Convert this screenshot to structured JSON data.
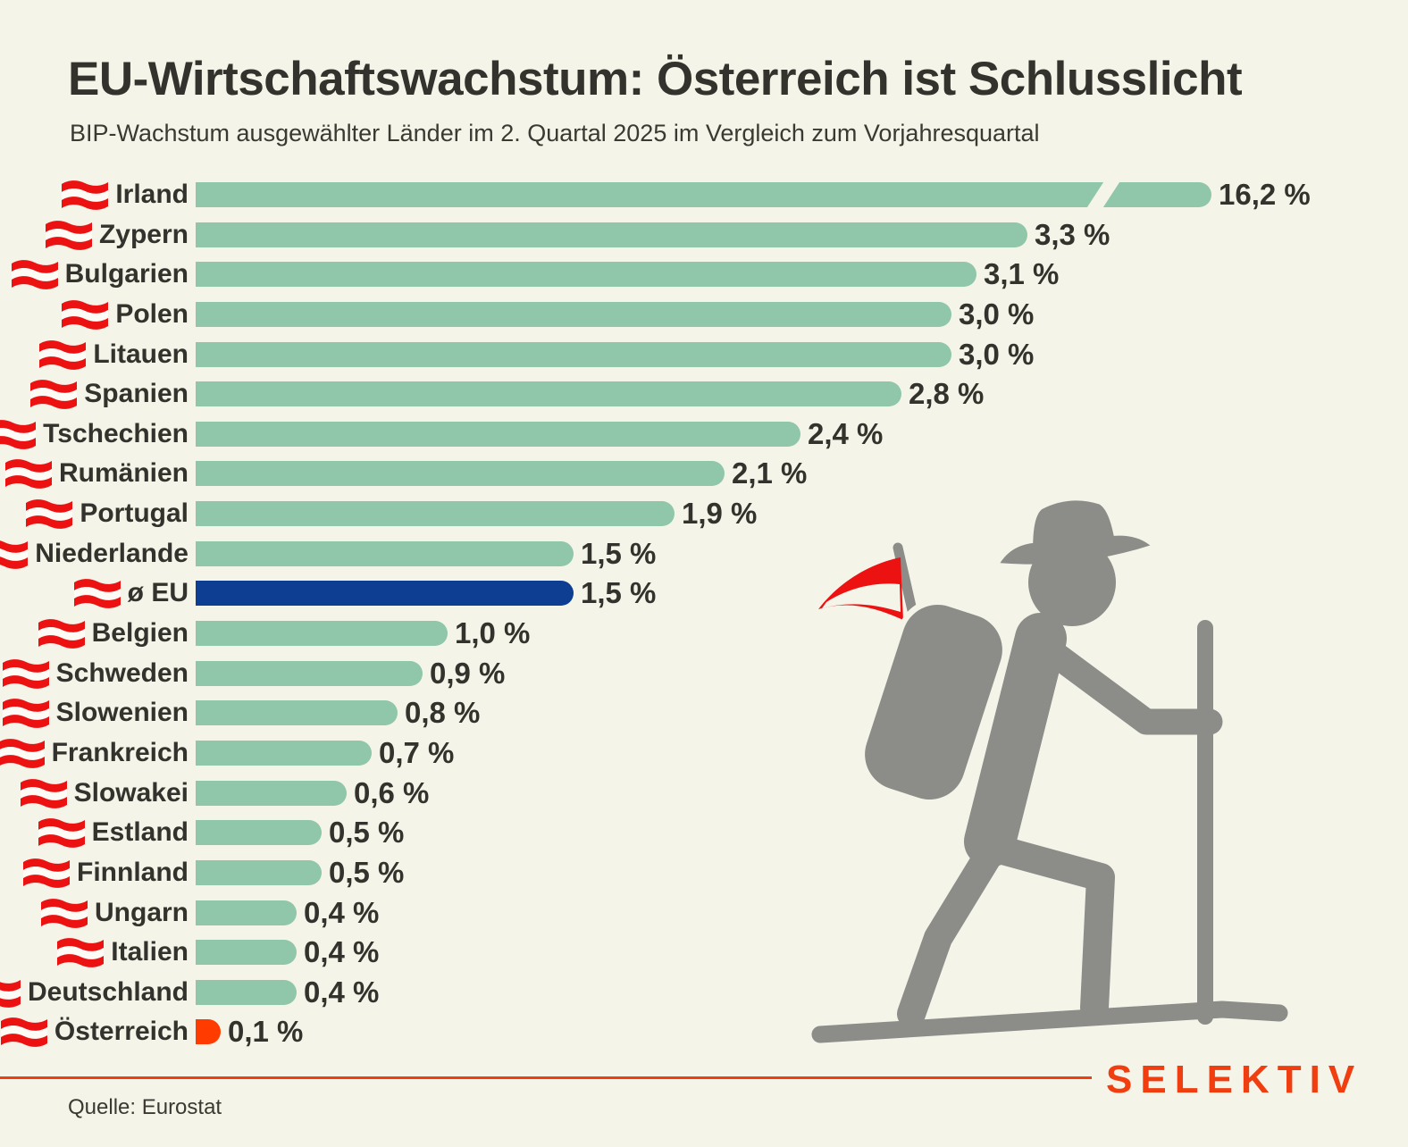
{
  "header": {
    "title": "EU-Wirtschaftswachstum: Österreich ist Schlusslicht",
    "subtitle": "BIP-Wachstum ausgewählter Länder im 2. Quartal 2025 im Vergleich zum Vorjahresquartal"
  },
  "footer": {
    "source": "Quelle: Eurostat",
    "brand": "SELEKTIV"
  },
  "illustration": {
    "name": "hiker-with-austrian-flag",
    "colors": {
      "figure": "#8c8c88",
      "flag_red": "#ec1212",
      "flag_white": "#f5f4e9"
    }
  },
  "chart_data": {
    "type": "bar",
    "orientation": "horizontal",
    "title": "EU-Wirtschaftswachstum: Österreich ist Schlusslicht",
    "subtitle": "BIP-Wachstum ausgewählter Länder im 2. Quartal 2025 im Vergleich zum Vorjahresquartal",
    "source": "Quelle: Eurostat",
    "unit": "% (BIP-Wachstum zum Vorjahresquartal)",
    "axis": {
      "min": 0,
      "visible_max": 4.0,
      "break_on": "Irland",
      "gridlines": false,
      "legend": false
    },
    "colors": {
      "bar_default": "#90c6a9",
      "bar_eu_average": "#0d3e92",
      "bar_austria": "#ff3b00",
      "background": "#f5f4e9",
      "text": "#33322c",
      "brand": "#f03e10"
    },
    "rows": [
      {
        "label": "Irland",
        "value": 16.2,
        "value_label": "16,2 %",
        "style": "green",
        "broken": true
      },
      {
        "label": "Zypern",
        "value": 3.3,
        "value_label": "3,3 %",
        "style": "green"
      },
      {
        "label": "Bulgarien",
        "value": 3.1,
        "value_label": "3,1 %",
        "style": "green"
      },
      {
        "label": "Polen",
        "value": 3.0,
        "value_label": "3,0 %",
        "style": "green"
      },
      {
        "label": "Litauen",
        "value": 3.0,
        "value_label": "3,0 %",
        "style": "green"
      },
      {
        "label": "Spanien",
        "value": 2.8,
        "value_label": "2,8 %",
        "style": "green"
      },
      {
        "label": "Tschechien",
        "value": 2.4,
        "value_label": "2,4 %",
        "style": "green"
      },
      {
        "label": "Rumänien",
        "value": 2.1,
        "value_label": "2,1 %",
        "style": "green"
      },
      {
        "label": "Portugal",
        "value": 1.9,
        "value_label": "1,9 %",
        "style": "green"
      },
      {
        "label": "Niederlande",
        "value": 1.5,
        "value_label": "1,5 %",
        "style": "green"
      },
      {
        "label": "ø EU",
        "value": 1.5,
        "value_label": "1,5 %",
        "style": "blue"
      },
      {
        "label": "Belgien",
        "value": 1.0,
        "value_label": "1,0 %",
        "style": "green"
      },
      {
        "label": "Schweden",
        "value": 0.9,
        "value_label": "0,9 %",
        "style": "green"
      },
      {
        "label": "Slowenien",
        "value": 0.8,
        "value_label": "0,8 %",
        "style": "green"
      },
      {
        "label": "Frankreich",
        "value": 0.7,
        "value_label": "0,7 %",
        "style": "green"
      },
      {
        "label": "Slowakei",
        "value": 0.6,
        "value_label": "0,6 %",
        "style": "green"
      },
      {
        "label": "Estland",
        "value": 0.5,
        "value_label": "0,5 %",
        "style": "green"
      },
      {
        "label": "Finnland",
        "value": 0.5,
        "value_label": "0,5 %",
        "style": "green"
      },
      {
        "label": "Ungarn",
        "value": 0.4,
        "value_label": "0,4 %",
        "style": "green"
      },
      {
        "label": "Italien",
        "value": 0.4,
        "value_label": "0,4 %",
        "style": "green"
      },
      {
        "label": "Deutschland",
        "value": 0.4,
        "value_label": "0,4 %",
        "style": "green"
      },
      {
        "label": "Österreich",
        "value": 0.1,
        "value_label": "0,1 %",
        "style": "orange",
        "flag": "austria"
      }
    ]
  }
}
